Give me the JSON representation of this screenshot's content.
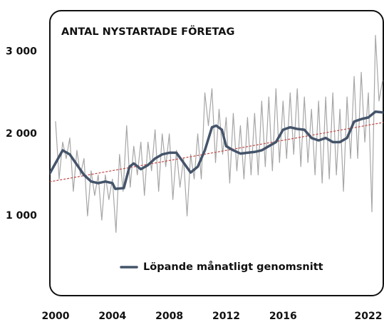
{
  "chart_data": {
    "type": "line",
    "title": "ANTAL NYSTARTADE FÖRETAG",
    "xlim": [
      1999.6,
      2023.05
    ],
    "xticks": [
      2000,
      2004,
      2008,
      2012,
      2016,
      2022
    ],
    "ylim": [
      30,
      3500
    ],
    "yticks": [
      {
        "value": 1000,
        "label": "1 000"
      },
      {
        "value": 2000,
        "label": "2 000"
      },
      {
        "value": 3000,
        "label": "3 000"
      }
    ],
    "grid": false,
    "legend": "bottom",
    "series": [
      {
        "color": "#a6a6a6",
        "line_width": 1.2,
        "dash": "solid",
        "x": [
          2000,
          2000.25,
          2000.5,
          2000.75,
          2001,
          2001.25,
          2001.5,
          2001.75,
          2002,
          2002.25,
          2002.5,
          2002.75,
          2003,
          2003.25,
          2003.5,
          2003.75,
          2004,
          2004.25,
          2004.5,
          2004.75,
          2005,
          2005.25,
          2005.5,
          2005.75,
          2006,
          2006.25,
          2006.5,
          2006.75,
          2007,
          2007.25,
          2007.5,
          2007.75,
          2008,
          2008.25,
          2008.5,
          2008.75,
          2009,
          2009.25,
          2009.5,
          2009.75,
          2010,
          2010.25,
          2010.5,
          2010.75,
          2011,
          2011.25,
          2011.5,
          2011.75,
          2012,
          2012.25,
          2012.5,
          2012.75,
          2013,
          2013.25,
          2013.5,
          2013.75,
          2014,
          2014.25,
          2014.5,
          2014.75,
          2015,
          2015.25,
          2015.5,
          2015.75,
          2016,
          2016.25,
          2016.5,
          2016.75,
          2017,
          2017.25,
          2017.5,
          2017.75,
          2018,
          2018.25,
          2018.5,
          2018.75,
          2019,
          2019.25,
          2019.5,
          2019.75,
          2020,
          2020.25,
          2020.5,
          2020.75,
          2021,
          2021.25,
          2021.5,
          2021.75,
          2022,
          2022.25,
          2022.5,
          2022.75,
          2023
        ],
        "values": [
          2150,
          1450,
          1900,
          1700,
          1950,
          1300,
          1800,
          1500,
          1700,
          1000,
          1550,
          1250,
          1500,
          950,
          1500,
          1200,
          1450,
          800,
          1750,
          1300,
          2100,
          1350,
          1850,
          1500,
          1900,
          1250,
          1900,
          1550,
          2050,
          1300,
          2000,
          1600,
          2000,
          1200,
          1800,
          1350,
          1700,
          1000,
          1750,
          1450,
          2000,
          1450,
          2500,
          2100,
          2550,
          1650,
          2300,
          1750,
          2200,
          1400,
          2250,
          1550,
          2100,
          1450,
          2200,
          1500,
          2250,
          1500,
          2400,
          1600,
          2450,
          1550,
          2550,
          1650,
          2400,
          1700,
          2500,
          1750,
          2550,
          1600,
          2450,
          1650,
          2300,
          1500,
          2400,
          1400,
          2450,
          1450,
          2500,
          1500,
          2300,
          1300,
          2450,
          1700,
          2700,
          1700,
          2750,
          1900,
          2500,
          1050,
          3200,
          2400,
          2650
        ]
      },
      {
        "color": "#c0504d",
        "line_width": 1.3,
        "dash": "dotted",
        "x": [
          1999.6,
          2023.05
        ],
        "values": [
          1417,
          2139
        ]
      },
      {
        "name": "Löpande månatligt genomsnitt",
        "color": "#44546a",
        "line_width": 3.5,
        "dash": "solid",
        "x": [
          1999.6,
          2000.5,
          2001,
          2002,
          2002.5,
          2003,
          2003.5,
          2004,
          2004.2,
          2004.8,
          2005.2,
          2005.5,
          2006,
          2006.5,
          2007,
          2007.5,
          2008,
          2008.5,
          2009,
          2009.5,
          2010,
          2010.5,
          2011,
          2011.3,
          2011.7,
          2012,
          2012.5,
          2013,
          2013.5,
          2014,
          2014.5,
          2015,
          2015.5,
          2016,
          2016.5,
          2017,
          2017.5,
          2018,
          2018.5,
          2019,
          2019.5,
          2020,
          2020.5,
          2021,
          2021.5,
          2022,
          2022.5,
          2023.05
        ],
        "values": [
          1520,
          1800,
          1750,
          1500,
          1420,
          1400,
          1420,
          1400,
          1330,
          1340,
          1600,
          1640,
          1570,
          1620,
          1700,
          1750,
          1770,
          1770,
          1650,
          1530,
          1600,
          1800,
          2080,
          2100,
          2050,
          1850,
          1800,
          1760,
          1770,
          1780,
          1800,
          1850,
          1900,
          2050,
          2080,
          2060,
          2050,
          1950,
          1920,
          1950,
          1900,
          1900,
          1950,
          2150,
          2180,
          2200,
          2270,
          2260
        ]
      }
    ]
  }
}
